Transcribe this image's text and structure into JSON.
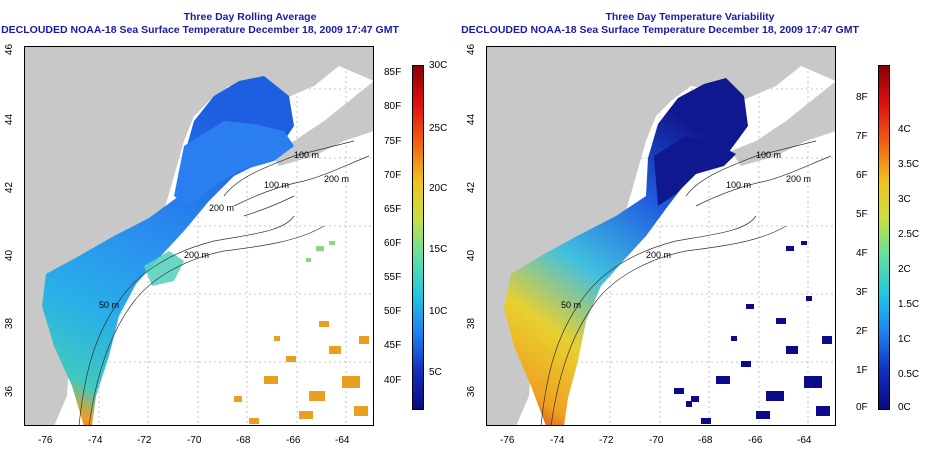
{
  "left_panel": {
    "title": "Three Day Rolling Average",
    "subtitle": "DECLOUDED NOAA-18 Sea Surface Temperature December 18, 2009 17:47 GMT",
    "contour_labels": [
      "100 m",
      "100 m",
      "200 m",
      "200 m",
      "50 m",
      "200 m"
    ],
    "colorbar_f": [
      "85F",
      "80F",
      "75F",
      "70F",
      "65F",
      "60F",
      "55F",
      "50F",
      "45F",
      "40F"
    ],
    "colorbar_c": [
      "30C",
      "25C",
      "20C",
      "15C",
      "10C",
      "5C"
    ]
  },
  "right_panel": {
    "title": "Three Day Temperature Variability",
    "subtitle": "DECLOUDED NOAA-18 Sea Surface Temperature December 18, 2009 17:47 GMT",
    "contour_labels": [
      "100 m",
      "100 m",
      "200 m",
      "200 m",
      "50 m"
    ],
    "colorbar_f": [
      "8F",
      "7F",
      "6F",
      "5F",
      "4F",
      "3F",
      "2F",
      "1F",
      "0F"
    ],
    "colorbar_c": [
      "4C",
      "3.5C",
      "3C",
      "2.5C",
      "2C",
      "1.5C",
      "1C",
      "0.5C",
      "0C"
    ]
  },
  "axes": {
    "x_ticks": [
      "-76",
      "-74",
      "-72",
      "-70",
      "-68",
      "-66",
      "-64"
    ],
    "y_ticks": [
      "36",
      "38",
      "40",
      "42",
      "44",
      "46"
    ]
  },
  "colors": {
    "title": "#1a1aa6",
    "land": "#c8c8c8",
    "sst_cold": "#1b3fd6",
    "sst_warm": "#e8501a",
    "var_low": "#0a0a8a",
    "var_high": "#c81818"
  }
}
